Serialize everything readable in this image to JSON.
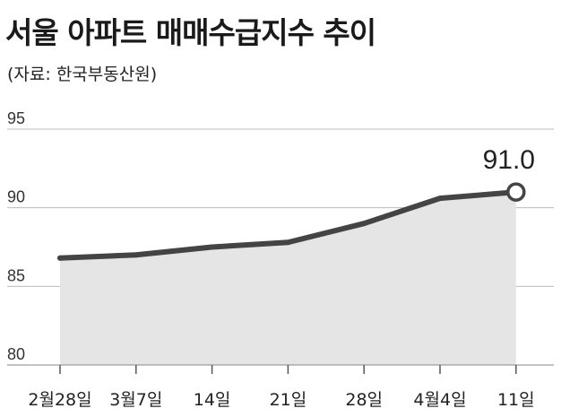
{
  "header": {
    "title": "서울 아파트 매매수급지수 추이",
    "source": "(자료: 한국부동산원)"
  },
  "chart_data": {
    "type": "area",
    "title": "서울 아파트 매매수급지수 추이",
    "categories": [
      "2월28일",
      "3월7일",
      "14일",
      "21일",
      "28일",
      "4월4일",
      "11일"
    ],
    "series": [
      {
        "values": [
          86.8,
          87.0,
          87.5,
          87.8,
          89.0,
          90.6,
          91.0
        ]
      }
    ],
    "ylim": [
      80,
      95
    ],
    "yticks": [
      "95",
      "90",
      "85",
      "80"
    ],
    "data_labels": [
      {
        "index": 6,
        "text": "91.0"
      }
    ],
    "grid": true,
    "colors": {
      "line": "#444444",
      "area": "#e5e5e5",
      "grid": "#bbbbbb",
      "marker_fill": "#ffffff"
    }
  }
}
